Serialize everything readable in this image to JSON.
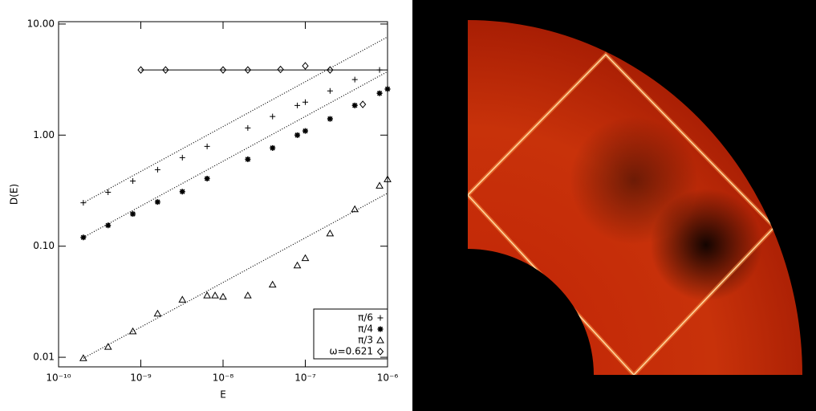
{
  "chart_data": {
    "type": "scatter",
    "xlabel": "E",
    "ylabel": "D(E)",
    "xlog": true,
    "ylog": true,
    "xlim": [
      1e-10,
      1e-06
    ],
    "ylim": [
      0.0082,
      10.5
    ],
    "xticks": [
      {
        "value": 1e-10,
        "label": "10⁻¹⁰"
      },
      {
        "value": 1e-09,
        "label": "10⁻⁹"
      },
      {
        "value": 1e-08,
        "label": "10⁻⁸"
      },
      {
        "value": 1e-07,
        "label": "10⁻⁷"
      },
      {
        "value": 1e-06,
        "label": "10⁻⁶"
      }
    ],
    "yticks": [
      {
        "value": 10,
        "label": "10.00"
      },
      {
        "value": 1,
        "label": "1.00"
      },
      {
        "value": 0.1,
        "label": "0.10"
      },
      0.01
    ],
    "series": [
      {
        "name": "π/6",
        "marker": "plus",
        "color": "#000000",
        "x": [
          2e-10,
          4e-10,
          8e-10,
          1.6e-09,
          3.2e-09,
          6.4e-09,
          2e-08,
          4e-08,
          8e-08,
          1e-07,
          2e-07,
          4e-07,
          8e-07
        ],
        "values": [
          0.246,
          0.306,
          0.386,
          0.488,
          0.627,
          0.792,
          1.16,
          1.47,
          1.85,
          1.98,
          2.5,
          3.16,
          3.86
        ]
      },
      {
        "name": "π/4",
        "marker": "asterisk",
        "color": "#000000",
        "x": [
          2e-10,
          4e-10,
          8e-10,
          1.6e-09,
          3.2e-09,
          6.4e-09,
          2e-08,
          4e-08,
          8e-08,
          1e-07,
          2e-07,
          4e-07,
          8e-07,
          1e-06
        ],
        "values": [
          0.12,
          0.154,
          0.195,
          0.25,
          0.31,
          0.406,
          0.606,
          0.766,
          1.0,
          1.09,
          1.4,
          1.85,
          2.38,
          2.6
        ]
      },
      {
        "name": "π/3",
        "marker": "triangle",
        "color": "#000000",
        "x": [
          2e-10,
          4e-10,
          8e-10,
          1.6e-09,
          3.2e-09,
          6.4e-09,
          8e-09,
          1e-08,
          2e-08,
          4e-08,
          8e-08,
          1e-07,
          2e-07,
          4e-07,
          8e-07,
          1e-06
        ],
        "values": [
          0.0098,
          0.0124,
          0.0171,
          0.0247,
          0.033,
          0.036,
          0.036,
          0.035,
          0.036,
          0.045,
          0.067,
          0.078,
          0.13,
          0.215,
          0.35,
          0.4
        ]
      },
      {
        "name": "ω=0.621",
        "marker": "diamond",
        "color": "#000000",
        "x": [
          1e-09,
          2e-09,
          1e-08,
          2e-08,
          5e-08,
          1e-07,
          2e-07,
          5e-07
        ],
        "values": [
          3.86,
          3.86,
          3.86,
          3.86,
          3.9,
          4.2,
          3.86,
          1.89
        ]
      }
    ],
    "fit_lines": [
      {
        "style": "dotted",
        "x": [
          2e-10,
          1e-06
        ],
        "values": [
          0.246,
          7.66
        ]
      },
      {
        "style": "dotted",
        "x": [
          2e-10,
          1e-06
        ],
        "values": [
          0.12,
          3.73
        ]
      },
      {
        "style": "dotted",
        "x": [
          2e-10,
          1e-06
        ],
        "values": [
          0.0098,
          0.3
        ]
      },
      {
        "style": "solid",
        "x": [
          1e-09,
          1e-06
        ],
        "values": [
          3.86,
          3.86
        ]
      }
    ]
  }
}
